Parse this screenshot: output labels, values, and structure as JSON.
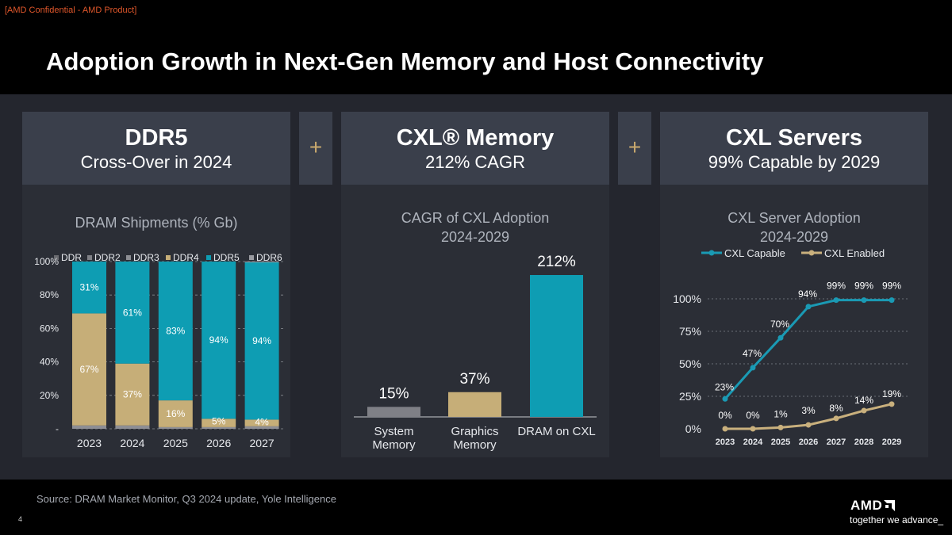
{
  "confidential": "[AMD Confidential - AMD Product]",
  "title": "Adoption Growth in Next-Gen Memory and Host Connectivity",
  "plus_symbol": "+",
  "panels": [
    {
      "title": "DDR5",
      "subtitle": "Cross-Over in 2024",
      "chart_title": "DRAM Shipments (% Gb)"
    },
    {
      "title": "CXL® Memory",
      "subtitle": "212% CAGR",
      "chart_title_line1": "CAGR of CXL Adoption",
      "chart_title_line2": "2024-2029"
    },
    {
      "title": "CXL Servers",
      "subtitle": "99% Capable by 2029",
      "chart_title_line1": "CXL Server Adoption",
      "chart_title_line2": "2024-2029"
    }
  ],
  "footer": {
    "source": "Source: DRAM Market Monitor, Q3 2024 update, Yole Intelligence",
    "page": "4",
    "logo": "AMD",
    "tagline": "together we advance_"
  },
  "colors": {
    "ddr4": "#c6ae78",
    "ddr5": "#0e9db3",
    "gray": "#7f8086",
    "dark_gray": "#5a5b60",
    "line_gold": "#c9b07d"
  },
  "chart_data": [
    {
      "type": "bar",
      "stacked": true,
      "title": "DRAM Shipments (% Gb)",
      "categories": [
        "2023",
        "2024",
        "2025",
        "2026",
        "2027"
      ],
      "legend": [
        "DDR",
        "DDR2",
        "DDR3",
        "DDR4",
        "DDR5",
        "DDR6"
      ],
      "legend_position": "top",
      "y_ticks": [
        "-",
        "20%",
        "40%",
        "60%",
        "80%",
        "100%"
      ],
      "ylim": [
        0,
        100
      ],
      "grid": true,
      "series": [
        {
          "name": "DDR",
          "values": [
            0,
            0,
            0,
            0,
            0
          ]
        },
        {
          "name": "DDR2",
          "values": [
            0,
            0,
            0,
            0,
            0
          ]
        },
        {
          "name": "DDR3",
          "values": [
            2,
            2,
            1,
            1,
            1.5
          ]
        },
        {
          "name": "DDR4",
          "values": [
            67,
            37,
            16,
            5,
            4
          ]
        },
        {
          "name": "DDR5",
          "values": [
            31,
            61,
            83,
            94,
            94
          ]
        },
        {
          "name": "DDR6",
          "values": [
            0,
            0,
            0,
            0,
            0.5
          ]
        }
      ],
      "labels": {
        "DDR4": [
          "67%",
          "37%",
          "16%",
          "5%",
          "4%"
        ],
        "DDR5": [
          "31%",
          "61%",
          "83%",
          "94%",
          "94%"
        ]
      }
    },
    {
      "type": "bar",
      "title": "CAGR of CXL Adoption 2024-2029",
      "categories": [
        "System Memory",
        "Graphics Memory",
        "DRAM on CXL"
      ],
      "categories_lines": [
        [
          "System",
          "Memory"
        ],
        [
          "Graphics",
          "Memory"
        ],
        [
          "DRAM on CXL"
        ]
      ],
      "values": [
        15,
        37,
        212
      ],
      "labels": [
        "15%",
        "37%",
        "212%"
      ],
      "colors": [
        "#7f8086",
        "#c6ae78",
        "#0e9db3"
      ]
    },
    {
      "type": "line",
      "title": "CXL Server Adoption 2024-2029",
      "x": [
        "2023",
        "2024",
        "2025",
        "2026",
        "2027",
        "2028",
        "2029"
      ],
      "y_ticks": [
        "0%",
        "25%",
        "50%",
        "75%",
        "100%"
      ],
      "ylim": [
        0,
        100
      ],
      "legend_position": "top",
      "series": [
        {
          "name": "CXL Capable",
          "values": [
            23,
            47,
            70,
            94,
            99,
            99,
            99
          ],
          "labels": [
            "23%",
            "47%",
            "70%",
            "94%",
            "99%",
            "99%",
            "99%"
          ],
          "color": "#1a9ab4"
        },
        {
          "name": "CXL Enabled",
          "values": [
            0,
            0,
            1,
            3,
            8,
            14,
            19
          ],
          "labels": [
            "0%",
            "0%",
            "1%",
            "3%",
            "8%",
            "14%",
            "19%"
          ],
          "color": "#c9b07d"
        }
      ]
    }
  ]
}
